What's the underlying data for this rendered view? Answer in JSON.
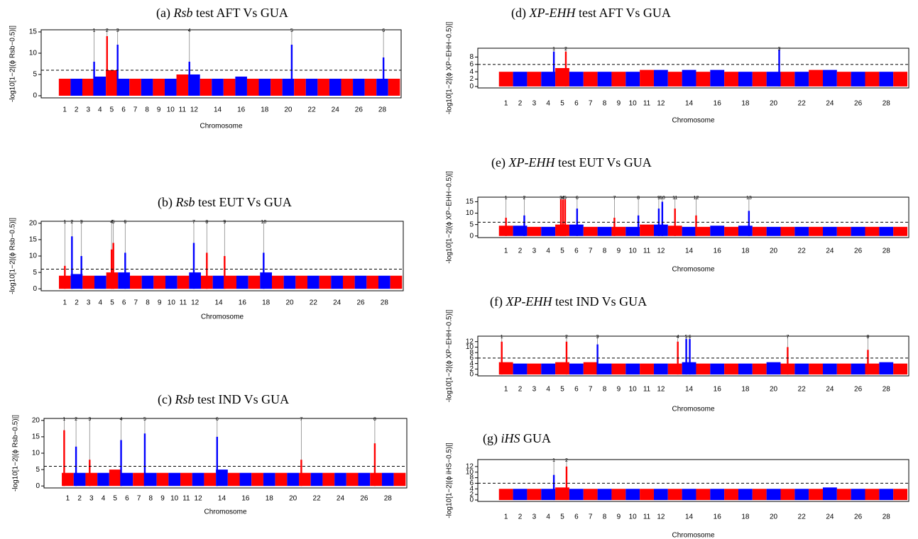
{
  "chart_data": [
    {
      "type": "manhattan",
      "title_label": "(a)",
      "title_method": "Rsb",
      "title_rest": "test AFT Vs GUA",
      "y_label": "-log10[1−2|(ϕ Rsb−0.5)|]",
      "x_label": "Chromosome",
      "categories": [
        "1",
        "2",
        "3",
        "4",
        "5",
        "6",
        "7",
        "8",
        "9",
        "10",
        "11",
        "12",
        null,
        "14",
        null,
        "16",
        null,
        "18",
        null,
        "20",
        null,
        "22",
        null,
        "24",
        null,
        "26",
        null,
        "28",
        null
      ],
      "values": [
        4,
        4,
        4,
        4.5,
        6,
        4,
        4,
        4,
        4,
        4,
        5,
        5,
        4,
        4,
        4,
        4.5,
        4,
        4,
        4,
        4,
        4,
        4,
        4,
        4,
        4,
        4,
        4,
        4,
        4
      ],
      "colors": [
        "#ff0000",
        "#0000ff"
      ],
      "threshold": 6,
      "peaks": {
        "labels": [
          "1",
          "2",
          "3",
          "4",
          "5",
          "6"
        ],
        "x": [
          3.5,
          4.6,
          5.5,
          11.6,
          20.3,
          28.1
        ],
        "values": [
          8,
          14,
          12,
          8,
          12,
          9
        ]
      },
      "xlim": [
        -1,
        29.6
      ],
      "ylim": [
        -0.5,
        15.5
      ],
      "yticks": [
        0,
        5,
        10,
        15
      ]
    },
    {
      "type": "manhattan",
      "title_label": "(b)",
      "title_method": "Rsb",
      "title_rest": "test EUT Vs GUA",
      "y_label": "-log10[1−2|(ϕ Rsb−0.5)|]",
      "x_label": "Chromosome",
      "categories": [
        "1",
        "2",
        "3",
        "4",
        "5",
        "6",
        "7",
        "8",
        "9",
        "10",
        "11",
        "12",
        null,
        "14",
        null,
        "16",
        null,
        "18",
        null,
        "20",
        null,
        "22",
        null,
        "24",
        null,
        "26",
        null,
        "28",
        null
      ],
      "values": [
        4,
        4.5,
        4,
        4,
        5,
        5,
        4,
        4,
        4,
        4,
        4,
        5,
        4,
        4,
        4,
        4,
        4,
        5,
        4,
        4,
        4,
        4,
        4,
        4,
        4,
        4,
        4,
        4,
        4
      ],
      "colors": [
        "#ff0000",
        "#0000ff"
      ],
      "threshold": 6,
      "peaks": {
        "labels": [
          "1",
          "2",
          "3",
          "4",
          "5",
          "6",
          "7",
          "8",
          "9",
          "10"
        ],
        "x": [
          1.0,
          1.6,
          2.4,
          4.95,
          5.1,
          6.1,
          11.9,
          13.0,
          14.5,
          17.8
        ],
        "values": [
          7,
          16,
          10,
          12,
          14,
          11,
          14,
          11,
          10,
          11
        ]
      },
      "xlim": [
        -1,
        29.6
      ],
      "ylim": [
        -0.6,
        20.6
      ],
      "yticks": [
        0,
        5,
        10,
        15,
        20
      ]
    },
    {
      "type": "manhattan",
      "title_label": "(c)",
      "title_method": "Rsb",
      "title_rest": "test IND Vs GUA",
      "y_label": "-log10[1−2|(ϕ Rsb−0.5)|]",
      "x_label": "Chromosome",
      "categories": [
        "1",
        "2",
        "3",
        "4",
        "5",
        "6",
        "7",
        "8",
        "9",
        "10",
        "11",
        "12",
        null,
        "14",
        null,
        "16",
        null,
        "18",
        null,
        "20",
        null,
        "22",
        null,
        "24",
        null,
        "26",
        null,
        "28",
        null
      ],
      "values": [
        4,
        4,
        4,
        4,
        5,
        4,
        4,
        4,
        4,
        4,
        4,
        4,
        4,
        5,
        4,
        4,
        4,
        4,
        4,
        4,
        4,
        4,
        4,
        4,
        4,
        4,
        4,
        4,
        4
      ],
      "colors": [
        "#ff0000",
        "#0000ff"
      ],
      "threshold": 6,
      "peaks": {
        "labels": [
          "1",
          "2",
          "3",
          "4",
          "5",
          "6",
          "7",
          "8"
        ],
        "x": [
          0.7,
          1.7,
          2.85,
          5.5,
          7.5,
          13.6,
          20.7,
          26.9
        ],
        "values": [
          17,
          12,
          8,
          14,
          16,
          15,
          8,
          13
        ]
      },
      "xlim": [
        -1,
        29.6
      ],
      "ylim": [
        -0.6,
        20.6
      ],
      "yticks": [
        0,
        5,
        10,
        15,
        20
      ]
    },
    {
      "type": "manhattan",
      "title_label": "(d)",
      "title_method": "XP-EHH",
      "title_rest": "test AFT Vs GUA",
      "y_label": "-log10[1−2|(ϕ XP−EHH−0.5)|]",
      "x_label": "Chromosome",
      "categories": [
        "1",
        "2",
        "3",
        "4",
        "5",
        "6",
        "7",
        "8",
        "9",
        "10",
        "11",
        "12",
        null,
        "14",
        null,
        "16",
        null,
        "18",
        null,
        "20",
        null,
        "22",
        null,
        "24",
        null,
        "26",
        null,
        "28",
        null
      ],
      "values": [
        4,
        4,
        4,
        4,
        5,
        4,
        4,
        4,
        4,
        4,
        4.5,
        4.5,
        4,
        4.5,
        4,
        4.5,
        4,
        4,
        4,
        4,
        4,
        4,
        4.5,
        4.5,
        4,
        4,
        4,
        4,
        4
      ],
      "colors": [
        "#ff0000",
        "#0000ff"
      ],
      "threshold": 6,
      "peaks": {
        "labels": [
          "1",
          "2",
          "3"
        ],
        "x": [
          4.4,
          5.25,
          20.4
        ],
        "values": [
          9.5,
          9.5,
          10
        ]
      },
      "xlim": [
        -1,
        29.6
      ],
      "ylim": [
        -0.4,
        10.4
      ],
      "yticks": [
        0,
        2,
        4,
        6,
        8
      ]
    },
    {
      "type": "manhattan",
      "title_label": "(e)",
      "title_method": "XP-EHH",
      "title_rest": "test EUT Vs GUA",
      "y_label": "-log10[1−2|(ϕ XP−EHH−0.5)|]",
      "x_label": "Chromosome",
      "categories": [
        "1",
        "2",
        "3",
        "4",
        "5",
        "6",
        "7",
        "8",
        "9",
        "10",
        "11",
        "12",
        null,
        "14",
        null,
        "16",
        null,
        "18",
        null,
        "20",
        null,
        "22",
        null,
        "24",
        null,
        "26",
        null,
        "28",
        null
      ],
      "values": [
        4.5,
        4.5,
        4,
        4,
        5,
        5,
        4,
        4,
        4,
        4,
        5,
        5,
        4.5,
        4,
        4,
        4.5,
        4,
        4.5,
        4,
        4,
        4,
        4,
        4,
        4,
        4,
        4,
        4,
        4,
        4
      ],
      "colors": [
        "#ff0000",
        "#0000ff"
      ],
      "threshold": 6,
      "peaks": {
        "labels": [
          "1",
          "2",
          "3",
          "4",
          "5",
          "6",
          "7",
          "8",
          "9",
          "10",
          "11",
          "12",
          "13"
        ],
        "x": [
          1.0,
          2.3,
          4.9,
          5.05,
          5.2,
          6.05,
          8.7,
          10.4,
          11.85,
          12.1,
          13.0,
          14.5,
          18.25
        ],
        "values": [
          8,
          9,
          16,
          16,
          16,
          12,
          8,
          9,
          12,
          15,
          12,
          9,
          11
        ]
      },
      "xlim": [
        -1,
        29.6
      ],
      "ylim": [
        -0.7,
        17
      ],
      "yticks": [
        0,
        5,
        10,
        15
      ]
    },
    {
      "type": "manhattan",
      "title_label": "(f)",
      "title_method": "XP-EHH",
      "title_rest": "test IND Vs GUA",
      "y_label": "-log10[1−2|(ϕ XP−EHH−0.5)|]",
      "x_label": "Chromosome",
      "categories": [
        "1",
        "2",
        "3",
        "4",
        "5",
        "6",
        "7",
        "8",
        "9",
        "10",
        "11",
        "12",
        null,
        "14",
        null,
        "16",
        null,
        "18",
        null,
        "20",
        null,
        "22",
        null,
        "24",
        null,
        "26",
        null,
        "28",
        null
      ],
      "values": [
        4.5,
        4,
        4,
        4,
        4.5,
        4,
        4.5,
        4,
        4,
        4,
        4,
        4,
        4,
        4.5,
        4,
        4,
        4,
        4,
        4,
        4.5,
        4,
        4,
        4,
        4,
        4,
        4,
        4,
        4.5,
        4
      ],
      "colors": [
        "#ff0000",
        "#0000ff"
      ],
      "threshold": 6,
      "peaks": {
        "labels": [
          "1",
          "2",
          "3",
          "4",
          "5",
          "6",
          "7",
          "8"
        ],
        "x": [
          0.7,
          5.3,
          7.5,
          13.2,
          13.8,
          14.05,
          21.0,
          26.7
        ],
        "values": [
          12,
          12,
          11,
          12,
          13,
          13,
          10,
          9
        ]
      },
      "xlim": [
        -1,
        29.6
      ],
      "ylim": [
        -0.5,
        14
      ],
      "yticks": [
        0,
        2,
        4,
        6,
        8,
        10,
        12
      ]
    },
    {
      "type": "manhattan",
      "title_label": "(g)",
      "title_method": "iHS",
      "title_rest": "GUA",
      "y_label": "-log10[1−2|(ϕ iHS−0.5)|]",
      "x_label": "Chromosome",
      "categories": [
        "1",
        "2",
        "3",
        "4",
        "5",
        "6",
        "7",
        "8",
        "9",
        "10",
        "11",
        "12",
        null,
        "14",
        null,
        "16",
        null,
        "18",
        null,
        "20",
        null,
        "22",
        null,
        "24",
        null,
        "26",
        null,
        "28",
        null
      ],
      "values": [
        4,
        4,
        4,
        4,
        4.5,
        4,
        4,
        4,
        4,
        4,
        4,
        4,
        4,
        4,
        4,
        4,
        4,
        4,
        4,
        4,
        4,
        4,
        4,
        4.5,
        4,
        4,
        4,
        4,
        4
      ],
      "colors": [
        "#ff0000",
        "#0000ff"
      ],
      "threshold": 6,
      "peaks": {
        "labels": [
          "1",
          "2"
        ],
        "x": [
          4.4,
          5.3
        ],
        "values": [
          9,
          12
        ]
      },
      "xlim": [
        -1,
        29.6
      ],
      "ylim": [
        -0.5,
        14.5
      ],
      "yticks": [
        0,
        2,
        4,
        6,
        8,
        10,
        12
      ]
    }
  ]
}
